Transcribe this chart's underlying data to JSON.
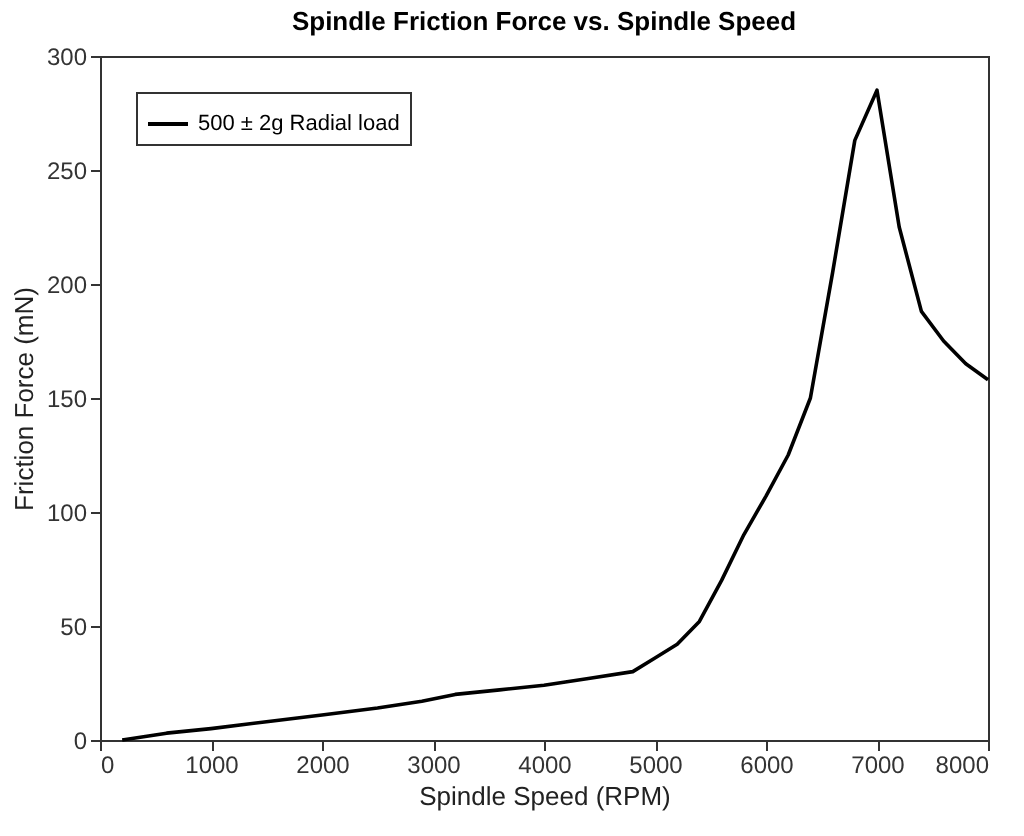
{
  "chart_data": {
    "type": "line",
    "title": "Spindle Friction Force vs. Spindle Speed",
    "xlabel": "Spindle Speed (RPM)",
    "ylabel": "Friction Force (mN)",
    "x": [
      200,
      600,
      1000,
      1500,
      2000,
      2500,
      2900,
      3200,
      3600,
      4000,
      4400,
      4800,
      5000,
      5200,
      5400,
      5600,
      5800,
      6000,
      6200,
      6400,
      6600,
      6800,
      7000,
      7200,
      7400,
      7600,
      7800,
      8000
    ],
    "series": [
      {
        "name": "500 ± 2g Radial load",
        "color": "#000000",
        "values": [
          0,
          3,
          5,
          8,
          11,
          14,
          17,
          20,
          22,
          24,
          27,
          30,
          36,
          42,
          52,
          70,
          90,
          107,
          125,
          150,
          205,
          263,
          285,
          225,
          188,
          175,
          165,
          158
        ]
      }
    ],
    "xlim": [
      0,
      8000
    ],
    "ylim": [
      0,
      300
    ],
    "xticks": [
      0,
      1000,
      2000,
      3000,
      4000,
      5000,
      6000,
      7000,
      8000
    ],
    "yticks": [
      0,
      50,
      100,
      150,
      200,
      250,
      300
    ],
    "grid": false,
    "legend": "top left",
    "marker": "none",
    "line_style": "solid"
  }
}
